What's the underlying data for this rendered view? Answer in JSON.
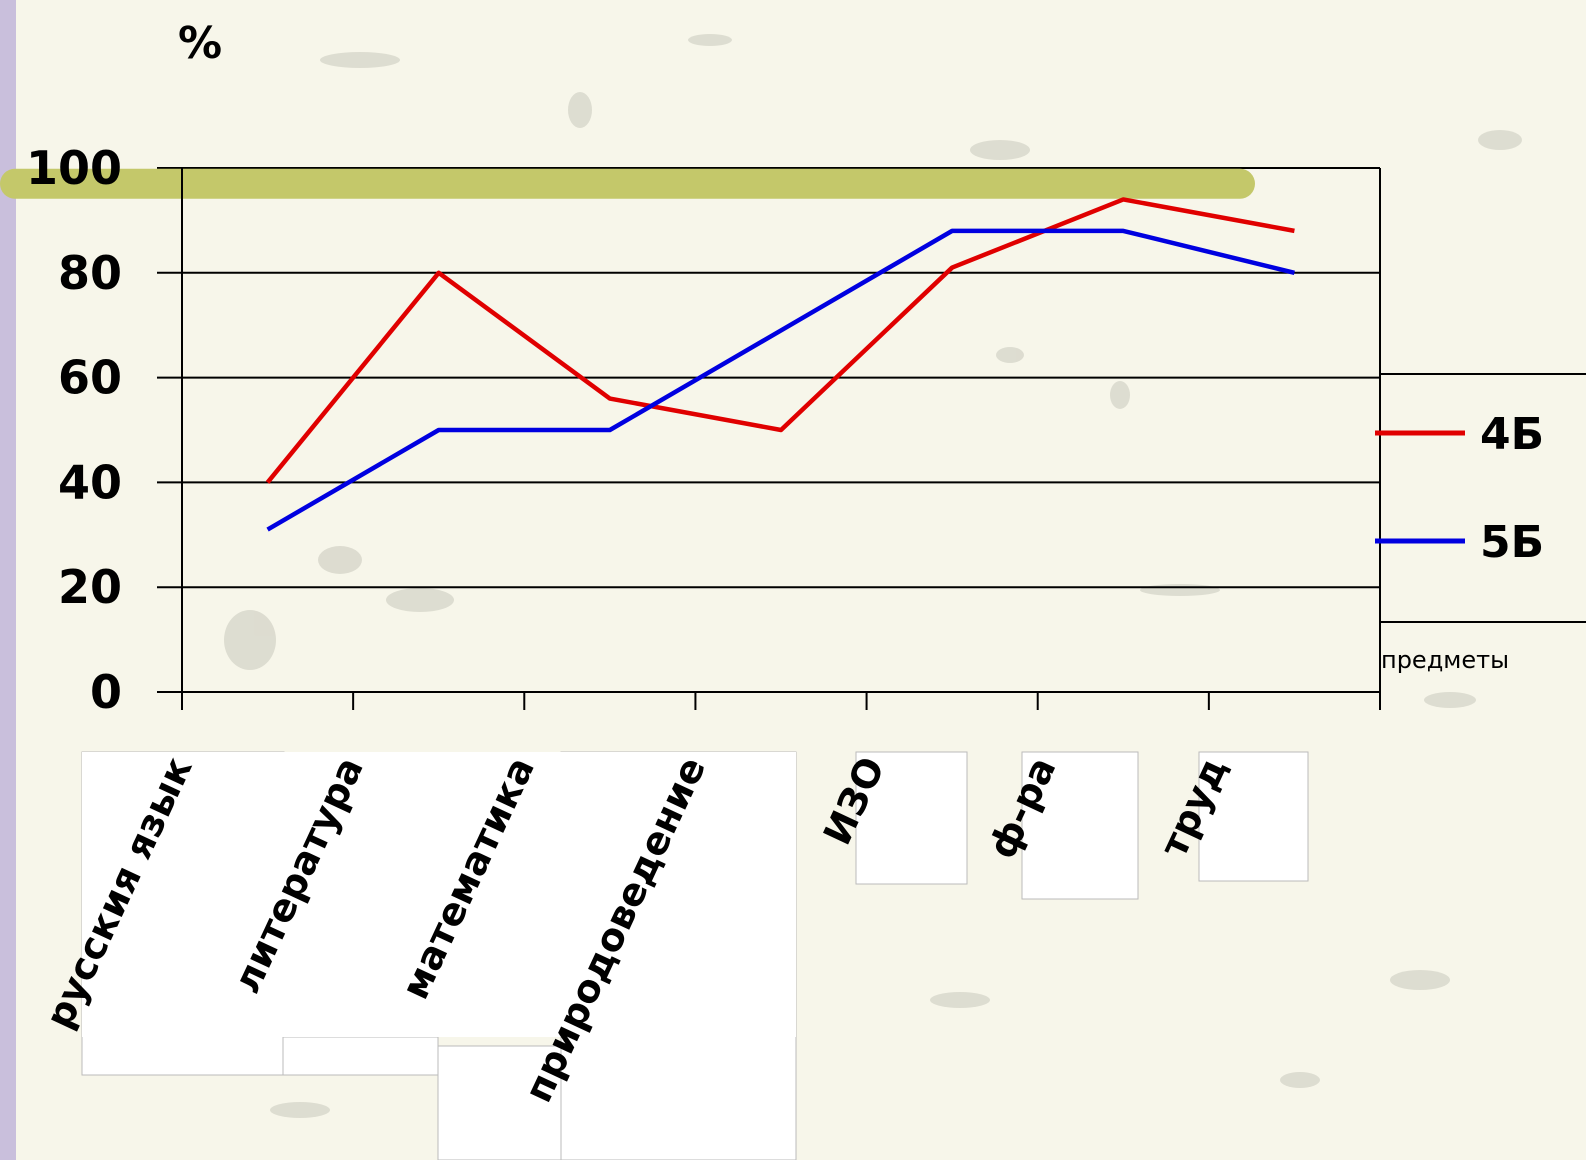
{
  "chart_data": {
    "type": "line",
    "ylabel": "%",
    "xlabel": "предметы",
    "ylim": [
      0,
      100
    ],
    "yticks": [
      "0",
      "20",
      "40",
      "60",
      "80",
      "100"
    ],
    "categories": [
      "русския язык",
      "литература",
      "математика",
      "природоведение",
      "ИЗО",
      "ф-ра",
      "труд"
    ],
    "series": [
      {
        "name": "4Б",
        "color": "#e00000",
        "values": [
          40,
          80,
          56,
          50,
          81,
          94,
          88
        ]
      },
      {
        "name": "5Б",
        "color": "#0000e0",
        "values": [
          31,
          50,
          50,
          69,
          88,
          88,
          80
        ]
      }
    ],
    "grid": true,
    "legend": "right",
    "highlight": {
      "value": 97,
      "color": "#c4c86a"
    },
    "colors": {
      "background": "#f7f6ea",
      "sidebar": "#c9bfdc"
    }
  }
}
